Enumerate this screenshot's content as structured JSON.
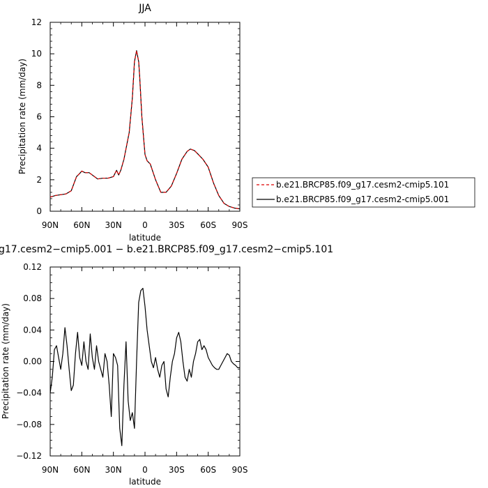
{
  "chart_data": [
    {
      "type": "line",
      "title": "JJA",
      "xlabel": "latitude",
      "ylabel": "Precipitation rate (mm/day)",
      "xlim": [
        90,
        -90
      ],
      "ylim": [
        0,
        12
      ],
      "x_ticks": [
        90,
        60,
        30,
        0,
        -30,
        -60,
        -90
      ],
      "x_tick_labels": [
        "90N",
        "60N",
        "30N",
        "0",
        "30S",
        "60S",
        "90S"
      ],
      "y_ticks": [
        0,
        2,
        4,
        6,
        8,
        10,
        12
      ],
      "y_tick_labels": [
        "0",
        "2",
        "4",
        "6",
        "8",
        "10",
        "12"
      ],
      "grid": false,
      "legend_position": "right",
      "series": [
        {
          "name": "b.e21.BRCP85.f09_g17.cesm2-cmip5.101",
          "color": "#dd0000",
          "dash": "dashed",
          "x": [
            90,
            85,
            80,
            75,
            70,
            65,
            62,
            60,
            57,
            53,
            50,
            45,
            40,
            35,
            30,
            27,
            25,
            23,
            20,
            15,
            12,
            10,
            8,
            6,
            5,
            3,
            0,
            -2,
            -5,
            -10,
            -15,
            -20,
            -25,
            -30,
            -35,
            -40,
            -43,
            -47,
            -50,
            -55,
            -60,
            -65,
            -70,
            -75,
            -80,
            -85,
            -90
          ],
          "y": [
            0.9,
            1.0,
            1.05,
            1.1,
            1.3,
            2.2,
            2.4,
            2.55,
            2.45,
            2.45,
            2.3,
            2.05,
            2.1,
            2.1,
            2.2,
            2.6,
            2.3,
            2.6,
            3.3,
            5.0,
            7.2,
            9.5,
            10.2,
            9.5,
            8.5,
            6.0,
            3.6,
            3.2,
            3.0,
            2.0,
            1.2,
            1.2,
            1.6,
            2.4,
            3.3,
            3.8,
            3.95,
            3.85,
            3.65,
            3.3,
            2.8,
            1.8,
            1.0,
            0.5,
            0.3,
            0.2,
            0.15
          ]
        },
        {
          "name": "b.e21.BRCP85.f09_g17.cesm2-cmip5.001",
          "color": "#000000",
          "dash": "solid",
          "x": [
            90,
            85,
            80,
            75,
            70,
            65,
            62,
            60,
            57,
            53,
            50,
            45,
            40,
            35,
            30,
            27,
            25,
            23,
            20,
            15,
            12,
            10,
            8,
            6,
            5,
            3,
            0,
            -2,
            -5,
            -10,
            -15,
            -20,
            -25,
            -30,
            -35,
            -40,
            -43,
            -47,
            -50,
            -55,
            -60,
            -65,
            -70,
            -75,
            -80,
            -85,
            -90
          ],
          "y": [
            0.9,
            1.0,
            1.05,
            1.1,
            1.3,
            2.2,
            2.4,
            2.55,
            2.45,
            2.45,
            2.3,
            2.05,
            2.1,
            2.1,
            2.2,
            2.6,
            2.3,
            2.6,
            3.3,
            5.0,
            7.2,
            9.5,
            10.2,
            9.5,
            8.5,
            6.0,
            3.6,
            3.2,
            3.0,
            2.0,
            1.2,
            1.2,
            1.6,
            2.4,
            3.3,
            3.8,
            3.95,
            3.85,
            3.65,
            3.3,
            2.8,
            1.8,
            1.0,
            0.5,
            0.3,
            0.2,
            0.15
          ]
        }
      ]
    },
    {
      "type": "line",
      "title": "g17.cesm2−cmip5.001 − b.e21.BRCP85.f09_g17.cesm2−cmip5.101",
      "xlabel": "latitude",
      "ylabel": "Precipitation rate (mm/day)",
      "xlim": [
        90,
        -90
      ],
      "ylim": [
        -0.12,
        0.12
      ],
      "x_ticks": [
        90,
        60,
        30,
        0,
        -30,
        -60,
        -90
      ],
      "x_tick_labels": [
        "90N",
        "60N",
        "30N",
        "0",
        "30S",
        "60S",
        "90S"
      ],
      "y_ticks": [
        -0.12,
        -0.08,
        -0.04,
        0,
        0.04,
        0.08,
        0.12
      ],
      "y_tick_labels": [
        "−0.12",
        "−0.08",
        "−0.04",
        "0.00",
        "0.04",
        "0.08",
        "0.12"
      ],
      "grid": false,
      "series": [
        {
          "color": "#000000",
          "dash": "solid",
          "x": [
            90,
            88,
            86,
            84,
            82,
            80,
            78,
            76,
            74,
            72,
            70,
            68,
            66,
            64,
            62,
            60,
            58,
            56,
            54,
            52,
            50,
            48,
            46,
            44,
            42,
            40,
            38,
            36,
            34,
            32,
            30,
            28,
            26,
            24,
            22,
            20,
            18,
            16,
            14,
            12,
            10,
            8,
            6,
            4,
            2,
            0,
            -2,
            -4,
            -6,
            -8,
            -10,
            -12,
            -14,
            -16,
            -18,
            -20,
            -22,
            -24,
            -26,
            -28,
            -30,
            -32,
            -34,
            -36,
            -38,
            -40,
            -42,
            -44,
            -46,
            -48,
            -50,
            -52,
            -54,
            -56,
            -58,
            -60,
            -62,
            -64,
            -66,
            -68,
            -70,
            -72,
            -74,
            -76,
            -78,
            -80,
            -82,
            -84,
            -86,
            -88,
            -90
          ],
          "y": [
            -0.04,
            -0.02,
            0.015,
            0.02,
            0.005,
            -0.01,
            0.01,
            0.043,
            0.02,
            -0.01,
            -0.037,
            -0.03,
            0.01,
            0.037,
            0.005,
            -0.005,
            0.025,
            0.0,
            -0.01,
            0.035,
            0.005,
            -0.01,
            0.02,
            0.0,
            -0.01,
            -0.02,
            0.01,
            0.0,
            -0.03,
            -0.07,
            0.01,
            0.005,
            -0.005,
            -0.085,
            -0.107,
            -0.03,
            0.025,
            -0.05,
            -0.075,
            -0.065,
            -0.085,
            0.0,
            0.075,
            0.09,
            0.093,
            0.07,
            0.04,
            0.02,
            0.0,
            -0.008,
            0.005,
            -0.01,
            -0.02,
            -0.005,
            0.0,
            -0.035,
            -0.045,
            -0.02,
            0.0,
            0.01,
            0.03,
            0.037,
            0.025,
            0.0,
            -0.02,
            -0.025,
            -0.01,
            -0.02,
            0.0,
            0.01,
            0.025,
            0.028,
            0.015,
            0.02,
            0.015,
            0.005,
            0.0,
            -0.005,
            -0.008,
            -0.01,
            -0.01,
            -0.005,
            0.0,
            0.005,
            0.01,
            0.008,
            0.0,
            -0.003,
            -0.005,
            -0.008,
            -0.008
          ]
        }
      ]
    }
  ]
}
